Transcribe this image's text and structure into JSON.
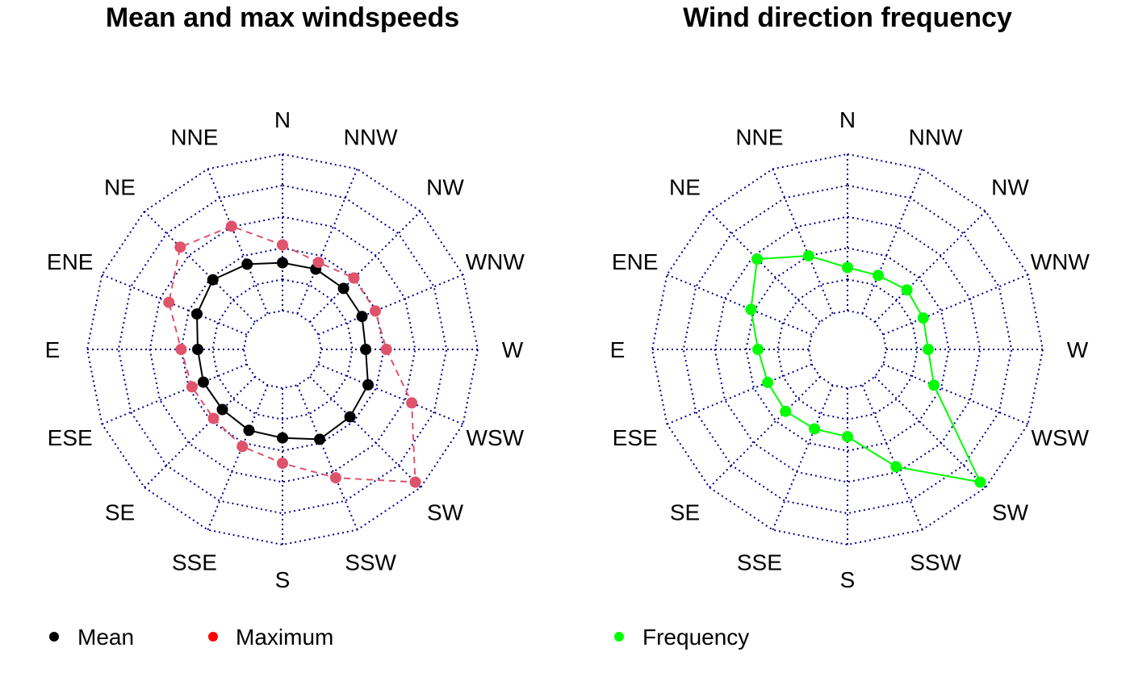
{
  "chart_data": [
    {
      "type": "radar",
      "title": "Mean and max windspeeds",
      "directions": [
        "N",
        "NNW",
        "NW",
        "WNW",
        "W",
        "WSW",
        "SW",
        "SSW",
        "S",
        "SSE",
        "SE",
        "ESE",
        "E",
        "ENE",
        "NE",
        "NNE"
      ],
      "rlim": [
        0,
        5
      ],
      "grid": true,
      "series": [
        {
          "name": "Mean",
          "color": "#000000",
          "line": "solid",
          "values": [
            1.53,
            1.54,
            1.52,
            1.51,
            1.42,
            1.72,
            1.81,
            1.87,
            1.59,
            1.56,
            1.48,
            1.5,
            1.47,
            1.72,
            1.91,
            1.71
          ]
        },
        {
          "name": "Maximum",
          "color": "#DF536B",
          "line": "dashed",
          "values": [
            2.1,
            1.77,
            1.99,
            1.97,
            2.08,
            3.23,
            4.76,
            3.2,
            2.4,
            2.12,
            1.88,
            1.89,
            2.0,
            2.69,
            3.38,
            3.02
          ]
        }
      ],
      "legend": [
        {
          "label": "Mean",
          "color": "#000000"
        },
        {
          "label": "Maximum",
          "color": "#FF0000"
        }
      ],
      "legend_position": "bottom"
    },
    {
      "type": "radar",
      "title": "Wind direction frequency",
      "directions": [
        "N",
        "NNW",
        "NW",
        "WNW",
        "W",
        "WSW",
        "SW",
        "SSW",
        "S",
        "SSE",
        "SE",
        "ESE",
        "E",
        "ENE",
        "NE",
        "NNE"
      ],
      "rlim": [
        0,
        5
      ],
      "grid": true,
      "series": [
        {
          "name": "Frequency",
          "color": "#00FF00",
          "line": "solid",
          "values": [
            1.38,
            1.32,
            1.45,
            1.38,
            1.34,
            1.75,
            4.76,
            2.82,
            1.55,
            1.51,
            1.56,
            1.52,
            1.62,
            2.1,
            2.84,
            2.0
          ]
        }
      ],
      "legend": [
        {
          "label": "Frequency",
          "color": "#00FF00"
        }
      ],
      "legend_position": "bottom"
    }
  ]
}
